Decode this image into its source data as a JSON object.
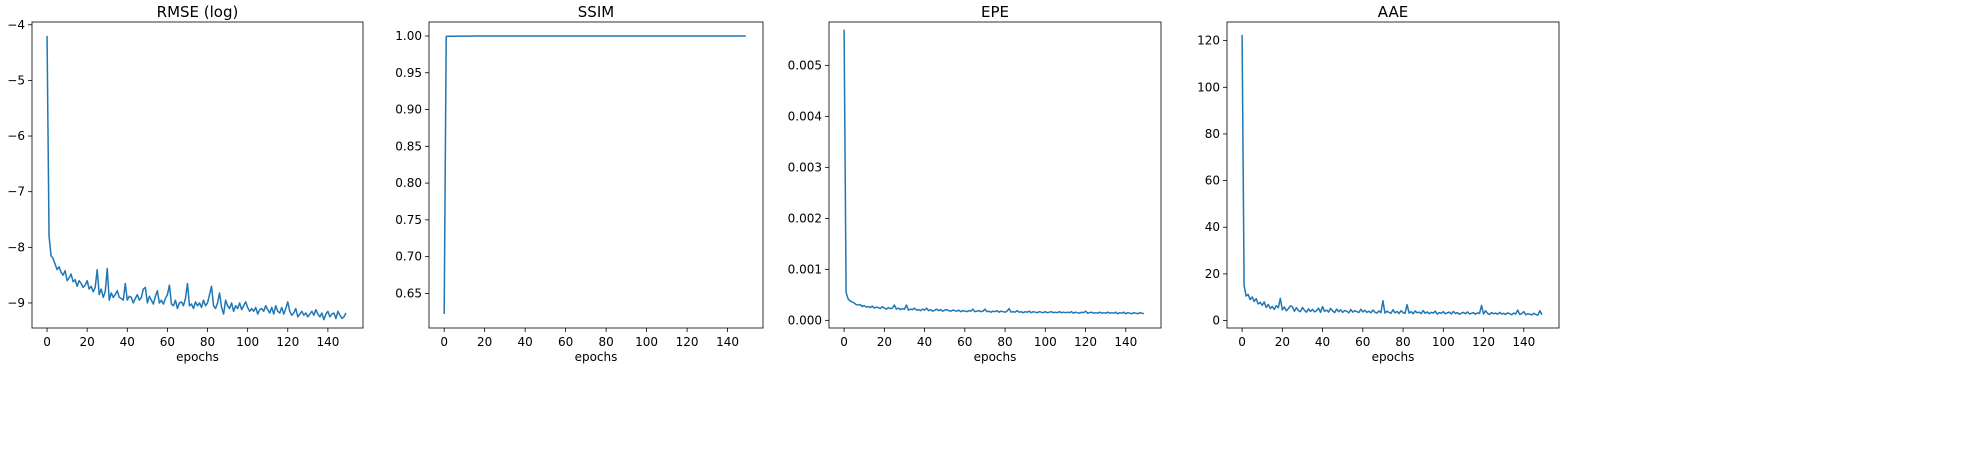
{
  "chart_data": [
    {
      "type": "line",
      "title": "RMSE (log)",
      "xlabel": "epochs",
      "ylabel": "",
      "xlim": [
        -7.5,
        157.5
      ],
      "ylim": [
        -9.45,
        -3.95
      ],
      "xticks": [
        0,
        20,
        40,
        60,
        80,
        100,
        120,
        140
      ],
      "yticks": [
        -9,
        -8,
        -7,
        -6,
        -5,
        -4
      ],
      "yticklabels": [
        "−9",
        "−8",
        "−7",
        "−6",
        "−5",
        "−4"
      ],
      "color": "#1f77b4",
      "series": [
        {
          "values": [
            -4.2,
            -7.8,
            -8.15,
            -8.2,
            -8.3,
            -8.4,
            -8.35,
            -8.45,
            -8.5,
            -8.42,
            -8.6,
            -8.55,
            -8.48,
            -8.62,
            -8.58,
            -8.7,
            -8.6,
            -8.65,
            -8.72,
            -8.68,
            -8.6,
            -8.75,
            -8.7,
            -8.8,
            -8.72,
            -8.4,
            -8.85,
            -8.75,
            -8.9,
            -8.8,
            -8.38,
            -8.95,
            -8.82,
            -8.9,
            -8.85,
            -8.78,
            -8.9,
            -8.92,
            -8.95,
            -8.65,
            -8.95,
            -8.88,
            -8.9,
            -9.0,
            -8.92,
            -8.85,
            -8.95,
            -8.9,
            -8.75,
            -8.72,
            -9.0,
            -8.88,
            -8.95,
            -9.02,
            -8.88,
            -8.78,
            -9.0,
            -8.95,
            -9.02,
            -8.92,
            -8.85,
            -8.68,
            -9.02,
            -9.05,
            -8.95,
            -9.1,
            -9.0,
            -8.98,
            -9.05,
            -8.92,
            -8.65,
            -9.05,
            -9.02,
            -9.1,
            -8.98,
            -9.05,
            -9.0,
            -9.08,
            -8.95,
            -9.05,
            -9.0,
            -8.85,
            -8.7,
            -9.05,
            -9.1,
            -9.0,
            -8.82,
            -9.08,
            -9.2,
            -8.95,
            -9.05,
            -9.1,
            -9.0,
            -9.15,
            -9.05,
            -9.1,
            -9.0,
            -9.12,
            -9.05,
            -8.98,
            -9.08,
            -9.15,
            -9.1,
            -9.15,
            -9.08,
            -9.2,
            -9.12,
            -9.1,
            -9.15,
            -9.05,
            -9.12,
            -9.18,
            -9.08,
            -9.2,
            -9.05,
            -9.15,
            -9.18,
            -9.08,
            -9.2,
            -9.1,
            -8.98,
            -9.15,
            -9.22,
            -9.18,
            -9.1,
            -9.25,
            -9.2,
            -9.15,
            -9.22,
            -9.18,
            -9.25,
            -9.2,
            -9.15,
            -9.22,
            -9.12,
            -9.2,
            -9.25,
            -9.18,
            -9.3,
            -9.2,
            -9.15,
            -9.25,
            -9.2,
            -9.18,
            -9.28,
            -9.15,
            -9.22,
            -9.28,
            -9.25,
            -9.18
          ]
        }
      ]
    },
    {
      "type": "line",
      "title": "SSIM",
      "xlabel": "epochs",
      "ylabel": "",
      "xlim": [
        -7.5,
        157.5
      ],
      "ylim": [
        0.603,
        1.019
      ],
      "xticks": [
        0,
        20,
        40,
        60,
        80,
        100,
        120,
        140
      ],
      "yticks": [
        0.65,
        0.7,
        0.75,
        0.8,
        0.85,
        0.9,
        0.95,
        1.0
      ],
      "yticklabels": [
        "0.65",
        "0.70",
        "0.75",
        "0.80",
        "0.85",
        "0.90",
        "0.95",
        "1.00"
      ],
      "color": "#1f77b4",
      "series": [
        {
          "values": [
            0.622,
            0.9995,
            0.9996,
            0.9997,
            0.9997,
            0.9997,
            0.9998,
            0.9998,
            0.9998,
            0.9998,
            0.9998,
            0.9998,
            0.9998,
            0.9998,
            0.9998,
            0.9999,
            0.9999,
            0.9999,
            0.9999,
            0.9999,
            0.9999,
            0.9999,
            0.9999,
            0.9999,
            0.9999,
            0.9999,
            0.9999,
            0.9999,
            0.9999,
            0.9999,
            0.9999,
            0.9999,
            0.9999,
            0.9999,
            0.9999,
            0.9999,
            0.9999,
            0.9999,
            0.9999,
            0.9999,
            0.9999,
            0.9999,
            0.9999,
            0.9999,
            0.9999,
            0.9999,
            0.9999,
            0.9999,
            0.9999,
            0.9999,
            0.9999,
            0.9999,
            0.9999,
            0.9999,
            0.9999,
            0.9999,
            0.9999,
            0.9999,
            0.9999,
            0.9999,
            0.9999,
            0.9999,
            0.9999,
            0.9999,
            0.9999,
            0.9999,
            0.9999,
            0.9999,
            0.9999,
            0.9999,
            0.9999,
            0.9999,
            0.9999,
            0.9999,
            0.9999,
            0.9999,
            0.9999,
            0.9999,
            0.9999,
            0.9999,
            0.9999,
            0.9999,
            0.9999,
            0.9999,
            0.9999,
            0.9999,
            0.9999,
            0.9999,
            0.9999,
            0.9999,
            0.9999,
            0.9999,
            0.9999,
            0.9999,
            0.9999,
            0.9999,
            0.9999,
            0.9999,
            0.9999,
            0.9999,
            0.9999,
            0.9999,
            0.9999,
            0.9999,
            0.9999,
            0.9999,
            0.9999,
            0.9999,
            0.9999,
            0.9999,
            0.9999,
            0.9999,
            0.9999,
            0.9999,
            0.9999,
            0.9999,
            0.9999,
            0.9999,
            0.9999,
            0.9999,
            0.9999,
            0.9999,
            0.9999,
            0.9999,
            0.9999,
            0.9999,
            0.9999,
            0.9999,
            0.9999,
            0.9999,
            0.9999,
            0.9999,
            0.9999,
            0.9999,
            0.9999,
            0.9999,
            0.9999,
            0.9999,
            0.9999,
            0.9999,
            0.9999,
            0.9999,
            0.9999,
            0.9999,
            0.9999,
            0.9999,
            0.9999,
            0.9999,
            0.9999,
            0.9999
          ]
        }
      ]
    },
    {
      "type": "line",
      "title": "EPE",
      "xlabel": "epochs",
      "ylabel": "",
      "xlim": [
        -7.5,
        157.5
      ],
      "ylim": [
        -0.00015,
        0.00585
      ],
      "xticks": [
        0,
        20,
        40,
        60,
        80,
        100,
        120,
        140
      ],
      "yticks": [
        0,
        0.001,
        0.002,
        0.003,
        0.004,
        0.005
      ],
      "yticklabels": [
        "0.000",
        "0.001",
        "0.002",
        "0.003",
        "0.004",
        "0.005"
      ],
      "color": "#1f77b4",
      "series": [
        {
          "values": [
            0.0057,
            0.00055,
            0.00042,
            0.00038,
            0.00036,
            0.00034,
            0.00031,
            0.0003,
            0.00031,
            0.00027,
            0.00029,
            0.00026,
            0.00027,
            0.00025,
            0.00028,
            0.00024,
            0.00026,
            0.00025,
            0.00023,
            0.00027,
            0.00024,
            0.00022,
            0.00025,
            0.00023,
            0.00024,
            0.0003,
            0.00022,
            0.00024,
            0.00021,
            0.00023,
            0.00022,
            0.0003,
            0.0002,
            0.00022,
            0.00021,
            0.00024,
            0.0002,
            0.00021,
            0.00019,
            0.00022,
            0.0002,
            0.00024,
            0.00019,
            0.00021,
            0.00018,
            0.0002,
            0.00022,
            0.00019,
            0.00021,
            0.00018,
            0.0002,
            0.00021,
            0.00019,
            0.00018,
            0.0002,
            0.00019,
            0.00018,
            0.0002,
            0.00017,
            0.00019,
            0.00018,
            0.00017,
            0.00019,
            0.00018,
            0.00022,
            0.00017,
            0.00018,
            0.00019,
            0.00017,
            0.00018,
            0.00022,
            0.00017,
            0.00018,
            0.00016,
            0.00018,
            0.00017,
            0.00019,
            0.00016,
            0.00018,
            0.00017,
            0.00016,
            0.00018,
            0.00023,
            0.00016,
            0.00017,
            0.00016,
            0.00019,
            0.00016,
            0.00017,
            0.00015,
            0.00017,
            0.00016,
            0.00018,
            0.00015,
            0.00017,
            0.00016,
            0.00015,
            0.00017,
            0.00016,
            0.00015,
            0.00017,
            0.00015,
            0.00016,
            0.00017,
            0.00015,
            0.00016,
            0.00015,
            0.00017,
            0.00015,
            0.00016,
            0.00015,
            0.00016,
            0.00015,
            0.00017,
            0.00014,
            0.00016,
            0.00015,
            0.00014,
            0.00016,
            0.00015,
            0.00018,
            0.00014,
            0.00015,
            0.00016,
            0.00014,
            0.00015,
            0.00014,
            0.00016,
            0.00014,
            0.00015,
            0.00014,
            0.00016,
            0.00014,
            0.00015,
            0.00014,
            0.00016,
            0.00013,
            0.00015,
            0.00014,
            0.00016,
            0.00013,
            0.00015,
            0.00014,
            0.00013,
            0.00015,
            0.00014,
            0.00013,
            0.00015,
            0.00014,
            0.00013
          ]
        }
      ]
    },
    {
      "type": "line",
      "title": "AAE",
      "xlabel": "epochs",
      "ylabel": "",
      "xlim": [
        -7.5,
        157.5
      ],
      "ylim": [
        -3.2,
        128
      ],
      "xticks": [
        0,
        20,
        40,
        60,
        80,
        100,
        120,
        140
      ],
      "yticks": [
        0,
        20,
        40,
        60,
        80,
        100,
        120
      ],
      "yticklabels": [
        "0",
        "20",
        "40",
        "60",
        "80",
        "100",
        "120"
      ],
      "color": "#1f77b4",
      "series": [
        {
          "values": [
            122.5,
            15.0,
            10.5,
            11.2,
            9.0,
            10.1,
            8.2,
            9.4,
            7.1,
            7.8,
            6.5,
            8.0,
            5.6,
            6.9,
            5.2,
            6.0,
            4.8,
            6.4,
            5.5,
            9.5,
            4.6,
            5.8,
            4.2,
            5.1,
            6.3,
            5.9,
            4.0,
            5.5,
            4.3,
            3.8,
            5.6,
            4.4,
            3.6,
            5.0,
            3.9,
            4.8,
            3.7,
            4.2,
            5.3,
            3.5,
            6.0,
            3.9,
            4.5,
            3.6,
            5.2,
            4.1,
            3.4,
            4.9,
            3.8,
            4.6,
            3.5,
            4.3,
            4.0,
            3.3,
            4.7,
            3.6,
            4.2,
            3.9,
            3.4,
            4.8,
            3.7,
            4.4,
            3.5,
            4.0,
            3.3,
            4.5,
            3.6,
            3.2,
            4.1,
            3.4,
            8.5,
            3.2,
            4.0,
            3.5,
            3.1,
            4.6,
            3.3,
            3.9,
            3.0,
            4.2,
            3.4,
            3.1,
            6.8,
            3.2,
            3.8,
            2.9,
            4.1,
            3.3,
            3.6,
            3.0,
            4.3,
            3.1,
            3.7,
            2.9,
            3.5,
            3.2,
            4.0,
            2.8,
            3.4,
            3.1,
            3.8,
            2.9,
            3.3,
            3.6,
            2.8,
            3.9,
            3.0,
            3.4,
            2.7,
            3.2,
            3.5,
            2.9,
            3.7,
            2.8,
            3.1,
            3.4,
            2.7,
            3.3,
            3.0,
            6.5,
            2.8,
            4.2,
            3.1,
            2.6,
            3.4,
            2.9,
            3.2,
            2.7,
            3.5,
            2.8,
            3.1,
            2.6,
            3.3,
            2.9,
            2.5,
            3.2,
            2.8,
            4.5,
            2.6,
            3.0,
            3.8,
            2.5,
            2.9,
            2.7,
            2.4,
            3.1,
            2.6,
            2.3,
            4.2,
            2.5
          ]
        }
      ]
    }
  ]
}
